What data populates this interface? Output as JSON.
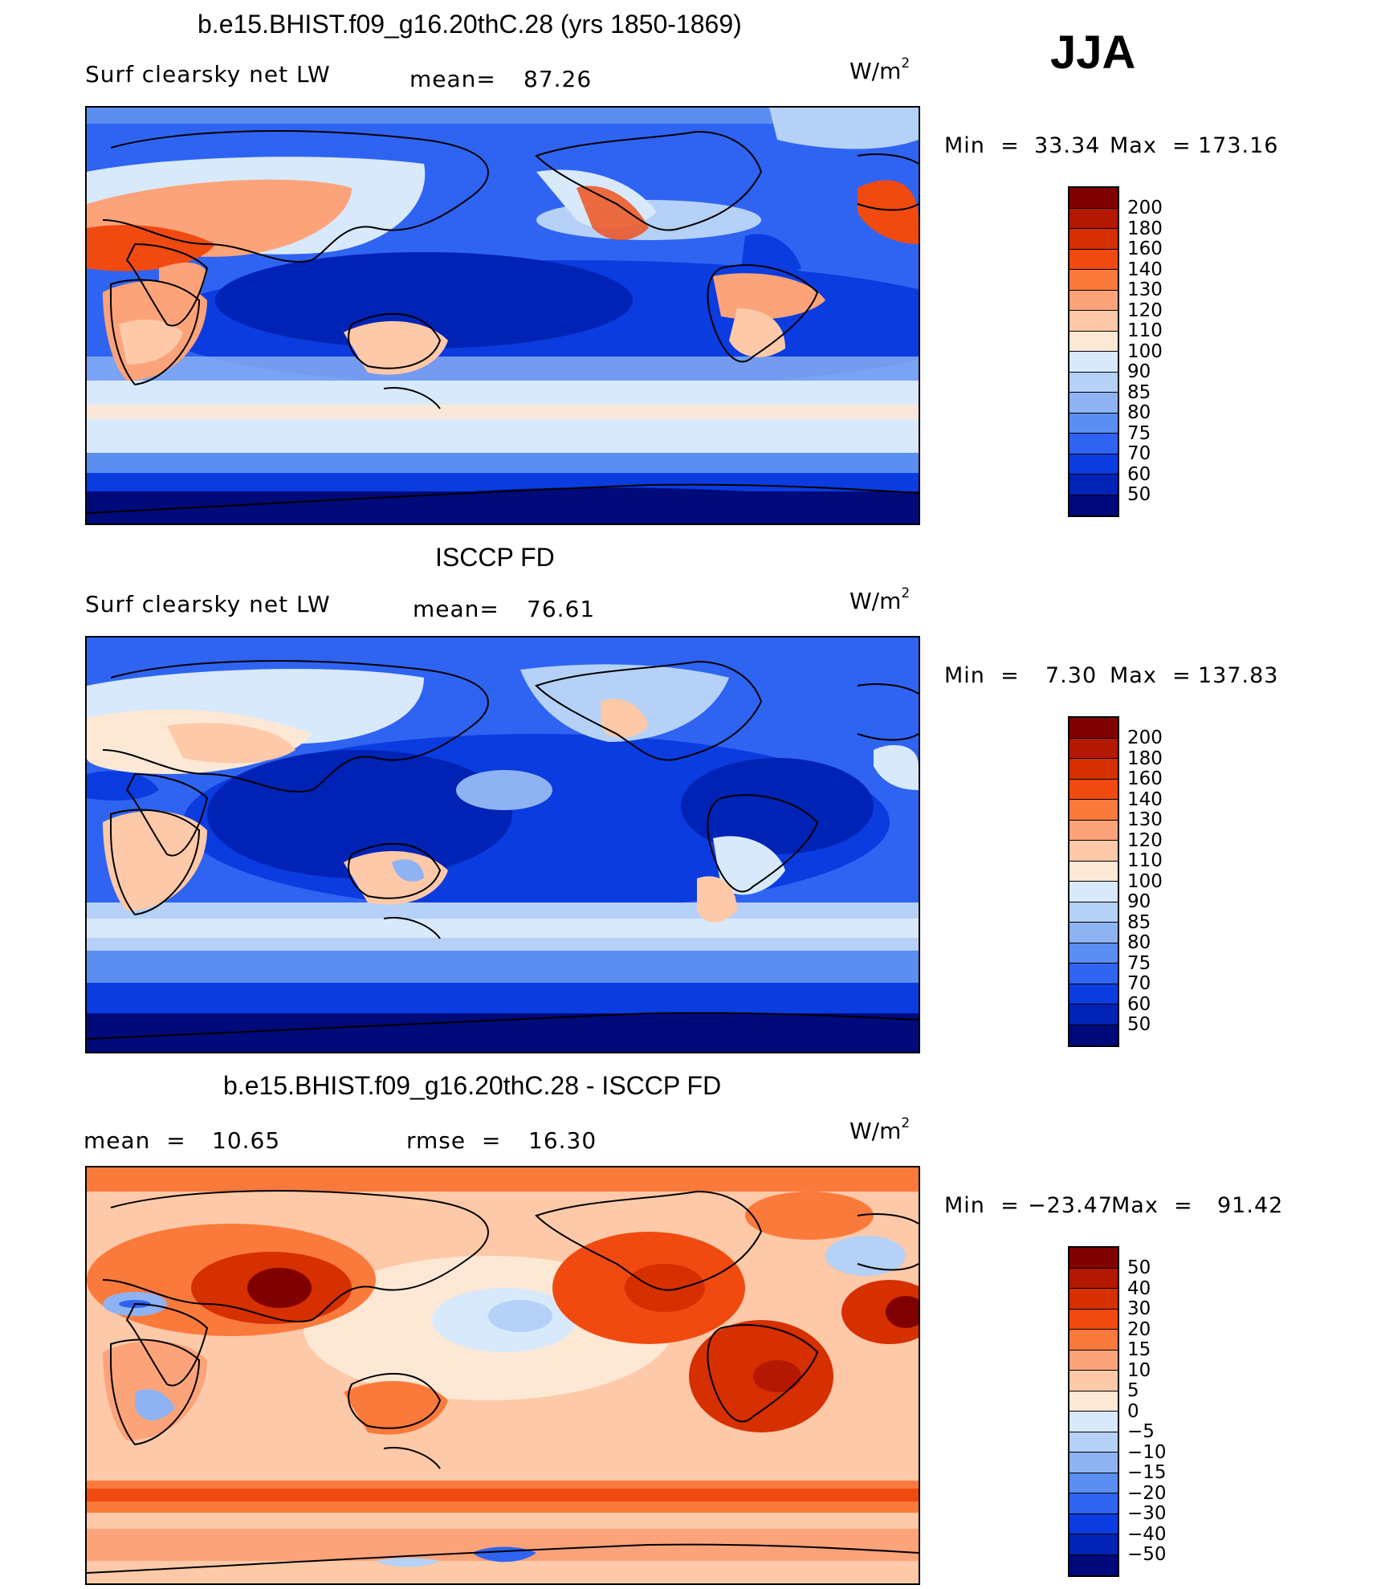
{
  "season": "JJA",
  "panels": [
    {
      "title": "b.e15.BHIST.f09_g16.20thC.28 (yrs 1850-1869)",
      "left_label": "Surf clearsky net LW",
      "mid_label": "mean=",
      "mid_value": "87.26",
      "units_base": "W/m",
      "units_exp": "2",
      "min_label": "Min  =",
      "min_value": "33.34",
      "max_label": "Max  =",
      "max_value": "173.16",
      "colorbar": {
        "labels": [
          "200",
          "180",
          "160",
          "140",
          "130",
          "120",
          "110",
          "100",
          "90",
          "85",
          "80",
          "75",
          "70",
          "60",
          "50"
        ],
        "colors": [
          "#800000",
          "#b41800",
          "#d62f00",
          "#f04a10",
          "#fa7a3c",
          "#fca37a",
          "#fdc9a8",
          "#fde8d6",
          "#d8e9fb",
          "#b5d1f7",
          "#8fb3f2",
          "#5b8ef0",
          "#2f64f2",
          "#0b3ce0",
          "#0023b5",
          "#000a7a"
        ]
      }
    },
    {
      "title": "ISCCP FD",
      "left_label": "Surf clearsky net LW",
      "mid_label": "mean=",
      "mid_value": "76.61",
      "units_base": "W/m",
      "units_exp": "2",
      "min_label": "Min  =",
      "min_value": "7.30",
      "max_label": "Max  =",
      "max_value": "137.83",
      "colorbar": {
        "labels": [
          "200",
          "180",
          "160",
          "140",
          "130",
          "120",
          "110",
          "100",
          "90",
          "85",
          "80",
          "75",
          "70",
          "60",
          "50"
        ],
        "colors": [
          "#800000",
          "#b41800",
          "#d62f00",
          "#f04a10",
          "#fa7a3c",
          "#fca37a",
          "#fdc9a8",
          "#fde8d6",
          "#d8e9fb",
          "#b5d1f7",
          "#8fb3f2",
          "#5b8ef0",
          "#2f64f2",
          "#0b3ce0",
          "#0023b5",
          "#000a7a"
        ]
      }
    },
    {
      "title": "b.e15.BHIST.f09_g16.20thC.28 - ISCCP FD",
      "left_label": "mean  =",
      "left_value": "10.65",
      "mid_label": "rmse  =",
      "mid_value": "16.30",
      "units_base": "W/m",
      "units_exp": "2",
      "min_label": "Min  =",
      "min_value": "−23.47",
      "max_label": "Max  =",
      "max_value": "91.42",
      "colorbar": {
        "labels": [
          "50",
          "40",
          "30",
          "20",
          "15",
          "10",
          "5",
          "0",
          "−5",
          "−10",
          "−15",
          "−20",
          "−30",
          "−40",
          "−50"
        ],
        "colors": [
          "#800000",
          "#b41800",
          "#d62f00",
          "#f04a10",
          "#fa7a3c",
          "#fca37a",
          "#fdc9a8",
          "#fde8d6",
          "#d8e9fb",
          "#b5d1f7",
          "#8fb3f2",
          "#5b8ef0",
          "#2f64f2",
          "#0b3ce0",
          "#0023b5",
          "#000a7a"
        ]
      }
    }
  ]
}
